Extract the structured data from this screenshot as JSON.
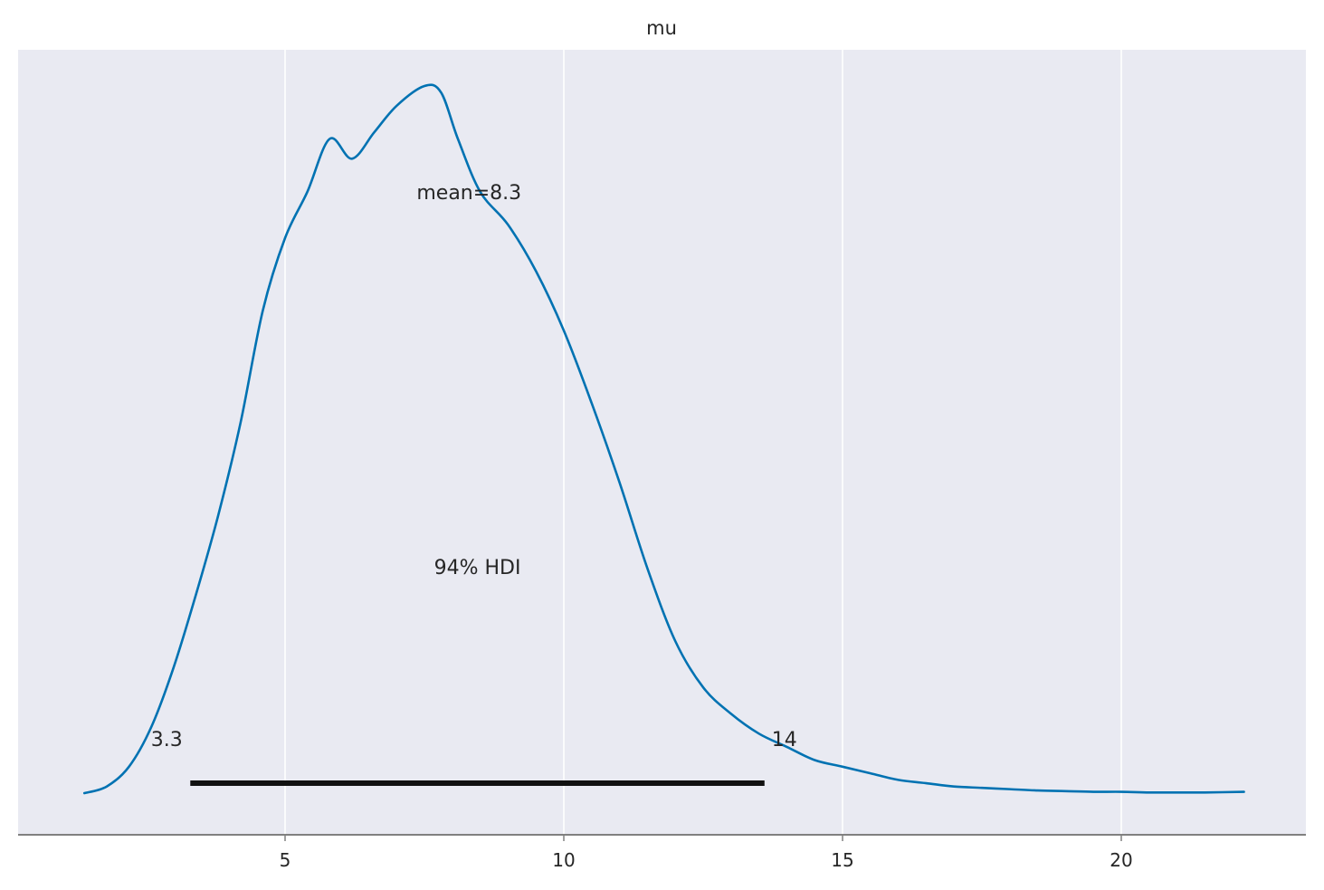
{
  "chart_data": {
    "type": "line",
    "title": "mu",
    "xlabel": "",
    "ylabel": "",
    "xlim": [
      1.2,
      22.5
    ],
    "ylim": [
      0,
      1.07
    ],
    "grid": "x-only",
    "x_ticks": [
      5,
      10,
      15,
      20
    ],
    "x_tick_labels": [
      "5",
      "10",
      "15",
      "20"
    ],
    "series": [
      {
        "color": "#0072b2",
        "x": [
          1.4,
          1.8,
          2.2,
          2.6,
          3.0,
          3.4,
          3.8,
          4.2,
          4.6,
          5.0,
          5.4,
          5.8,
          6.2,
          6.6,
          7.0,
          7.5,
          7.8,
          8.1,
          8.5,
          9.0,
          9.5,
          10.0,
          10.5,
          11.0,
          11.5,
          12.0,
          12.5,
          13.0,
          13.5,
          14.0,
          14.5,
          15.0,
          15.5,
          16.0,
          16.5,
          17.0,
          17.5,
          18.0,
          18.5,
          19.0,
          19.5,
          20.0,
          20.5,
          21.0,
          21.5,
          22.2
        ],
        "y": [
          0.0,
          0.01,
          0.04,
          0.1,
          0.19,
          0.3,
          0.42,
          0.56,
          0.73,
          0.84,
          0.91,
          0.99,
          0.96,
          1.0,
          1.04,
          1.07,
          1.06,
          0.99,
          0.91,
          0.86,
          0.79,
          0.7,
          0.59,
          0.47,
          0.34,
          0.23,
          0.16,
          0.12,
          0.09,
          0.07,
          0.05,
          0.04,
          0.03,
          0.02,
          0.015,
          0.01,
          0.008,
          0.006,
          0.004,
          0.003,
          0.002,
          0.002,
          0.001,
          0.001,
          0.001,
          0.002
        ]
      }
    ],
    "annotations": {
      "mean_label": "mean=8.3",
      "mean_x": 8.3,
      "hdi_label": "94% HDI",
      "hdi_low_label": "3.3",
      "hdi_high_label": "14",
      "hdi_low": 3.3,
      "hdi_high": 13.6
    },
    "colors": {
      "plot_background": "#e9eaf2",
      "grid": "#ffffff",
      "line": "#0072b2",
      "hdi_bar": "#111111",
      "axis": "#808080"
    }
  }
}
